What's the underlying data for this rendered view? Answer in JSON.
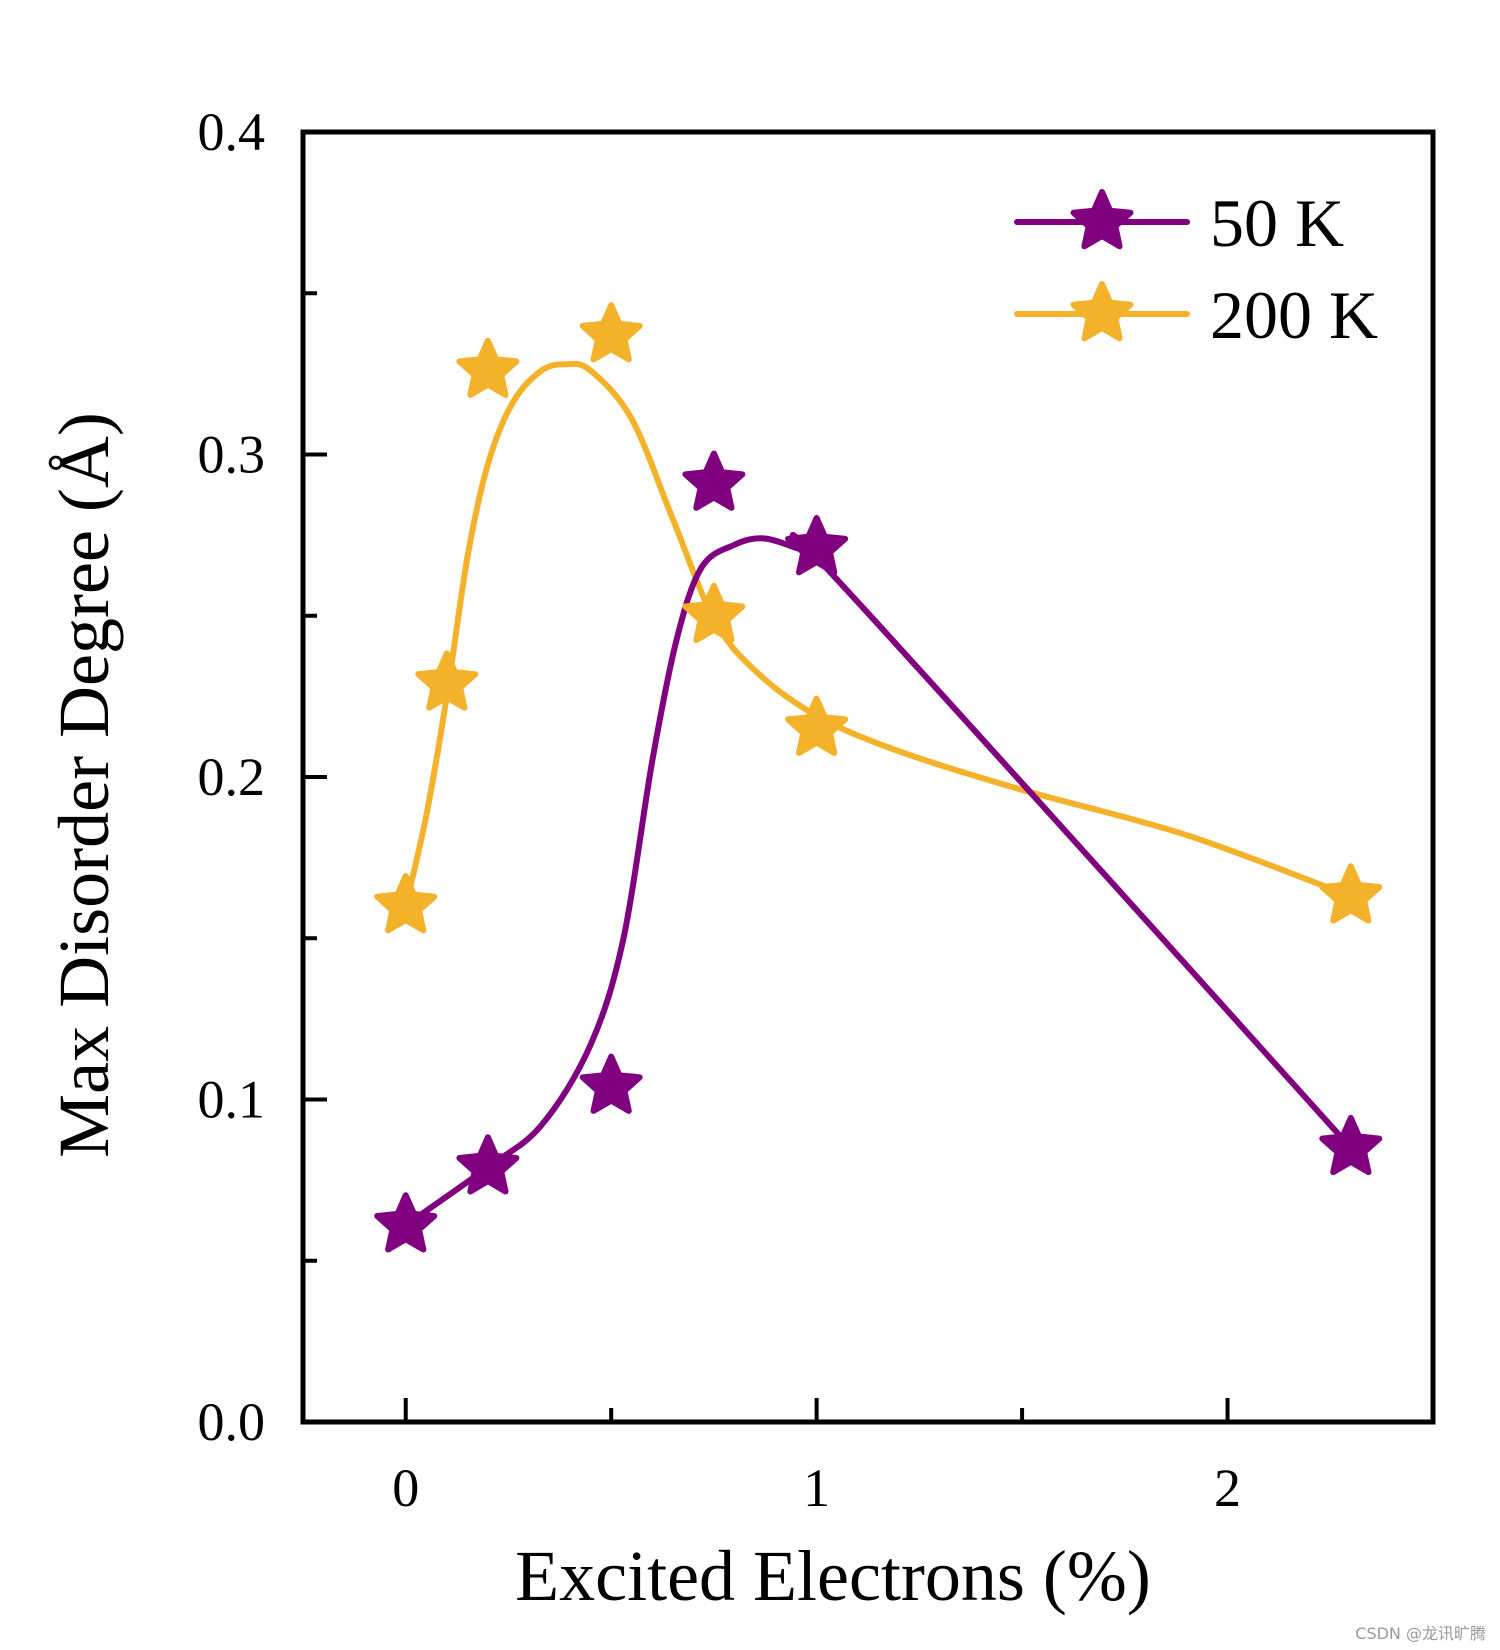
{
  "chart_data": {
    "type": "line",
    "title": "",
    "xlabel": "Excited Electrons (%)",
    "ylabel": "Max Disorder Degree (Å)",
    "xlim": [
      -0.25,
      2.5
    ],
    "ylim": [
      0.0,
      0.4
    ],
    "x_ticks": [
      0,
      0.5,
      1,
      1.5,
      2
    ],
    "x_tick_labels": [
      "0",
      "",
      "1",
      "",
      "2"
    ],
    "y_ticks": [
      0.0,
      0.05,
      0.1,
      0.15,
      0.2,
      0.25,
      0.3,
      0.35,
      0.4
    ],
    "y_tick_labels": [
      "0.0",
      "",
      "0.1",
      "",
      "0.2",
      "",
      "0.3",
      "",
      "0.4"
    ],
    "legend_position": "top-right",
    "grid": false,
    "series": [
      {
        "name": "50 K",
        "color": "#800080",
        "marker": "star",
        "x": [
          0,
          0.2,
          0.5,
          0.75,
          1.0,
          2.3
        ],
        "y": [
          0.061,
          0.079,
          0.104,
          0.291,
          0.271,
          0.085
        ],
        "smooth_curve": [
          [
            0,
            0.061
          ],
          [
            0.2,
            0.079
          ],
          [
            0.33,
            0.092
          ],
          [
            0.45,
            0.117
          ],
          [
            0.53,
            0.15
          ],
          [
            0.6,
            0.205
          ],
          [
            0.66,
            0.243
          ],
          [
            0.72,
            0.265
          ],
          [
            0.8,
            0.272
          ],
          [
            0.87,
            0.274
          ],
          [
            0.95,
            0.271
          ],
          [
            1.0,
            0.268
          ],
          [
            1.6,
            0.184
          ],
          [
            2.3,
            0.085
          ]
        ]
      },
      {
        "name": "200 K",
        "color": "#F4B12A",
        "marker": "star",
        "x": [
          0,
          0.1,
          0.2,
          0.5,
          0.75,
          1.0,
          2.3
        ],
        "y": [
          0.16,
          0.229,
          0.326,
          0.337,
          0.25,
          0.215,
          0.163
        ],
        "smooth_curve": [
          [
            0,
            0.16
          ],
          [
            0.05,
            0.188
          ],
          [
            0.1,
            0.225
          ],
          [
            0.15,
            0.268
          ],
          [
            0.2,
            0.297
          ],
          [
            0.26,
            0.316
          ],
          [
            0.33,
            0.326
          ],
          [
            0.39,
            0.328
          ],
          [
            0.45,
            0.326
          ],
          [
            0.55,
            0.311
          ],
          [
            0.65,
            0.28
          ],
          [
            0.75,
            0.249
          ],
          [
            0.85,
            0.233
          ],
          [
            1.0,
            0.219
          ],
          [
            1.2,
            0.208
          ],
          [
            1.5,
            0.196
          ],
          [
            1.9,
            0.182
          ],
          [
            2.3,
            0.163
          ]
        ]
      }
    ]
  },
  "watermark": "CSDN @龙讯旷腾"
}
